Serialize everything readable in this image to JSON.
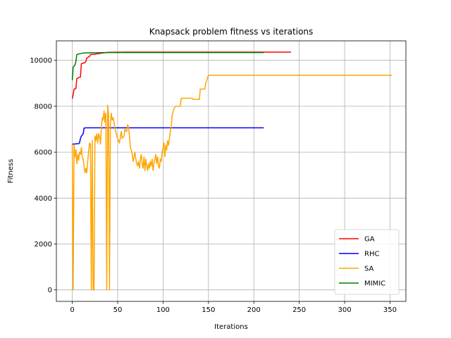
{
  "chart_data": {
    "type": "line",
    "title": "Knapsack problem fitness vs iterations",
    "xlabel": "Iterations",
    "ylabel": "Fitness",
    "xlim": [
      -17.5,
      367.5
    ],
    "ylim": [
      -500,
      10850
    ],
    "xticks": [
      0,
      50,
      100,
      150,
      200,
      250,
      300,
      350
    ],
    "yticks": [
      0,
      2000,
      4000,
      6000,
      8000,
      10000
    ],
    "grid": true,
    "legend_position": "lower right",
    "series": [
      {
        "name": "GA",
        "color": "#ff0000",
        "points": [
          [
            0,
            8330
          ],
          [
            1,
            8500
          ],
          [
            2,
            8750
          ],
          [
            3,
            8760
          ],
          [
            4,
            8770
          ],
          [
            5,
            9200
          ],
          [
            7,
            9250
          ],
          [
            8,
            9260
          ],
          [
            9,
            9270
          ],
          [
            10,
            9850
          ],
          [
            12,
            9880
          ],
          [
            14,
            9900
          ],
          [
            15,
            9950
          ],
          [
            16,
            10100
          ],
          [
            18,
            10150
          ],
          [
            19,
            10170
          ],
          [
            20,
            10250
          ],
          [
            25,
            10270
          ],
          [
            30,
            10300
          ],
          [
            35,
            10330
          ],
          [
            40,
            10350
          ],
          [
            60,
            10360
          ],
          [
            241,
            10360
          ]
        ]
      },
      {
        "name": "RHC",
        "color": "#0000ff",
        "points": [
          [
            0,
            6350
          ],
          [
            7,
            6370
          ],
          [
            8,
            6400
          ],
          [
            9,
            6600
          ],
          [
            10,
            6700
          ],
          [
            11,
            6750
          ],
          [
            12,
            6800
          ],
          [
            13,
            7050
          ],
          [
            15,
            7060
          ],
          [
            211,
            7060
          ]
        ]
      },
      {
        "name": "SA",
        "color": "#ffa500",
        "points": [
          [
            0,
            6350
          ],
          [
            1,
            0
          ],
          [
            2,
            6300
          ],
          [
            3,
            5800
          ],
          [
            4,
            6100
          ],
          [
            5,
            5500
          ],
          [
            6,
            5900
          ],
          [
            7,
            5650
          ],
          [
            8,
            6000
          ],
          [
            9,
            5900
          ],
          [
            10,
            6200
          ],
          [
            11,
            5800
          ],
          [
            12,
            5700
          ],
          [
            13,
            5400
          ],
          [
            14,
            5100
          ],
          [
            15,
            5300
          ],
          [
            16,
            5100
          ],
          [
            17,
            5600
          ],
          [
            18,
            6000
          ],
          [
            19,
            6400
          ],
          [
            20,
            6350
          ],
          [
            21,
            0
          ],
          [
            22,
            6500
          ],
          [
            23,
            0
          ],
          [
            24,
            0
          ],
          [
            25,
            6700
          ],
          [
            26,
            6500
          ],
          [
            27,
            6800
          ],
          [
            28,
            6400
          ],
          [
            29,
            6800
          ],
          [
            30,
            6700
          ],
          [
            31,
            6350
          ],
          [
            32,
            7000
          ],
          [
            33,
            7500
          ],
          [
            34,
            7400
          ],
          [
            35,
            7800
          ],
          [
            36,
            7300
          ],
          [
            37,
            7700
          ],
          [
            38,
            0
          ],
          [
            39,
            8050
          ],
          [
            40,
            7600
          ],
          [
            41,
            0
          ],
          [
            42,
            7200
          ],
          [
            43,
            7700
          ],
          [
            44,
            7400
          ],
          [
            45,
            7500
          ],
          [
            46,
            7300
          ],
          [
            47,
            7000
          ],
          [
            48,
            6900
          ],
          [
            49,
            6700
          ],
          [
            50,
            6600
          ],
          [
            52,
            6400
          ],
          [
            54,
            6900
          ],
          [
            55,
            6600
          ],
          [
            57,
            6700
          ],
          [
            58,
            7000
          ],
          [
            60,
            6900
          ],
          [
            61,
            7200
          ],
          [
            62,
            7100
          ],
          [
            63,
            6700
          ],
          [
            64,
            6200
          ],
          [
            65,
            6100
          ],
          [
            66,
            5900
          ],
          [
            67,
            5600
          ],
          [
            68,
            5800
          ],
          [
            69,
            6000
          ],
          [
            70,
            5700
          ],
          [
            71,
            5500
          ],
          [
            72,
            5400
          ],
          [
            73,
            5600
          ],
          [
            74,
            5300
          ],
          [
            75,
            5700
          ],
          [
            76,
            5900
          ],
          [
            77,
            5500
          ],
          [
            78,
            5300
          ],
          [
            79,
            5800
          ],
          [
            80,
            5200
          ],
          [
            81,
            5700
          ],
          [
            82,
            5400
          ],
          [
            83,
            5200
          ],
          [
            84,
            5500
          ],
          [
            85,
            5300
          ],
          [
            86,
            5600
          ],
          [
            87,
            5400
          ],
          [
            88,
            5700
          ],
          [
            89,
            5200
          ],
          [
            90,
            5500
          ],
          [
            91,
            5700
          ],
          [
            92,
            5900
          ],
          [
            93,
            5500
          ],
          [
            94,
            5800
          ],
          [
            95,
            5400
          ],
          [
            96,
            5300
          ],
          [
            97,
            5700
          ],
          [
            98,
            5600
          ],
          [
            99,
            6000
          ],
          [
            100,
            6200
          ],
          [
            101,
            6400
          ],
          [
            102,
            5800
          ],
          [
            103,
            6300
          ],
          [
            104,
            6100
          ],
          [
            105,
            6500
          ],
          [
            106,
            6300
          ],
          [
            107,
            6600
          ],
          [
            108,
            6900
          ],
          [
            109,
            7100
          ],
          [
            110,
            7600
          ],
          [
            112,
            7900
          ],
          [
            114,
            8000
          ],
          [
            119,
            8000
          ],
          [
            120,
            8350
          ],
          [
            132,
            8350
          ],
          [
            133,
            8300
          ],
          [
            140,
            8300
          ],
          [
            141,
            8750
          ],
          [
            146,
            8750
          ],
          [
            147,
            9000
          ],
          [
            150,
            9350
          ],
          [
            152,
            9350
          ],
          [
            352,
            9350
          ]
        ]
      },
      {
        "name": "MIMIC",
        "color": "#008000",
        "points": [
          [
            0,
            9130
          ],
          [
            1,
            9700
          ],
          [
            3,
            9800
          ],
          [
            4,
            9950
          ],
          [
            5,
            10250
          ],
          [
            7,
            10280
          ],
          [
            10,
            10300
          ],
          [
            12,
            10320
          ],
          [
            20,
            10330
          ],
          [
            40,
            10340
          ],
          [
            211,
            10340
          ]
        ]
      }
    ]
  }
}
